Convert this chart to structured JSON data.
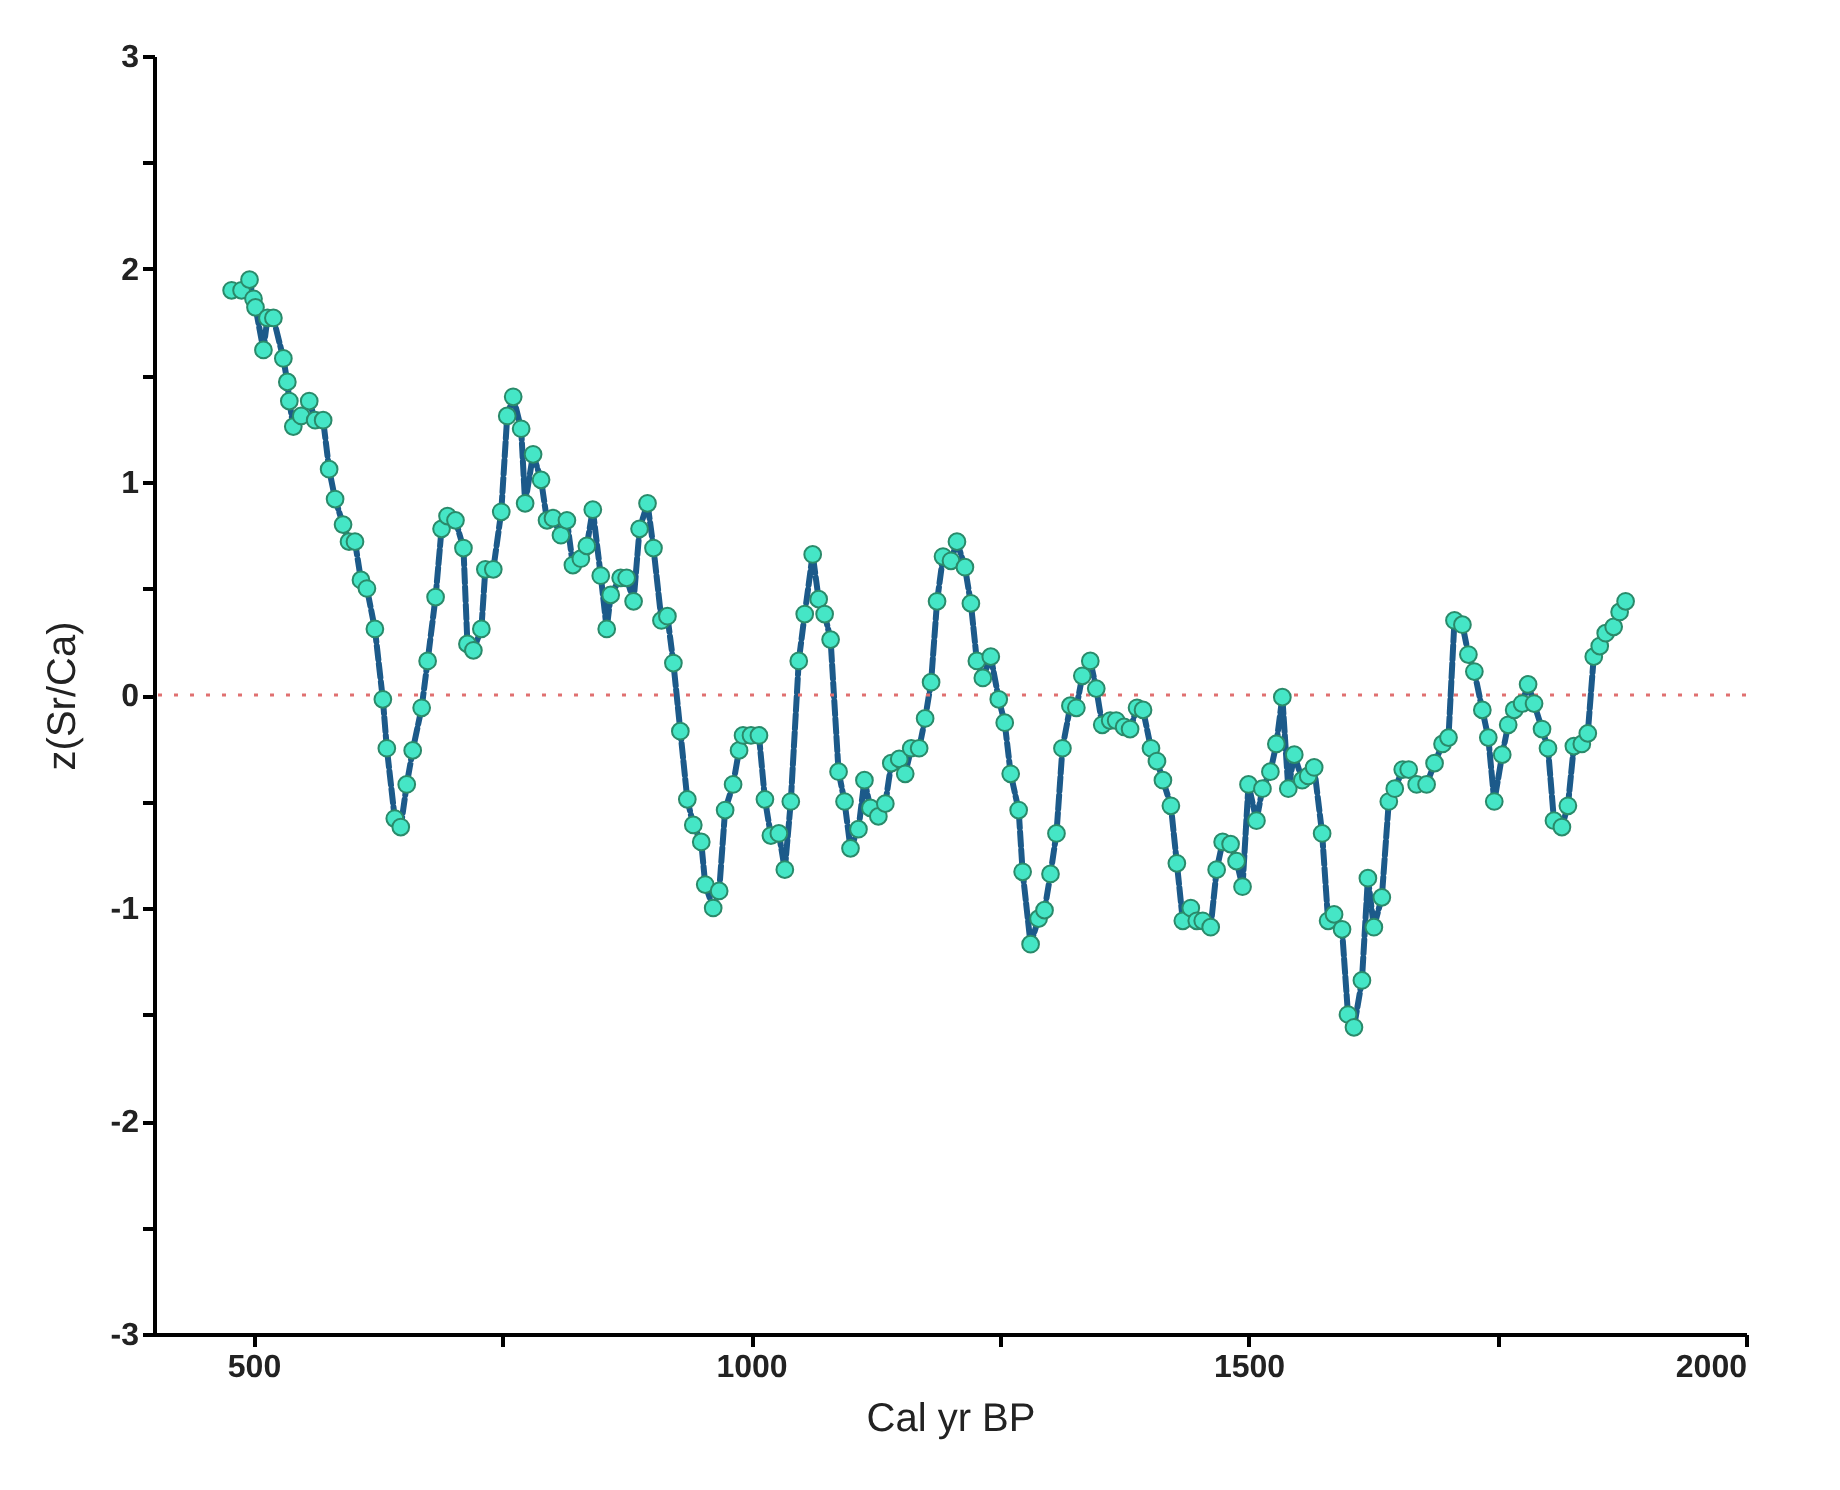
{
  "chart_data": {
    "type": "line",
    "xlabel": "Cal yr BP",
    "ylabel": "z(Sr/Ca)",
    "x": [
      478,
      488,
      496,
      500,
      502,
      510,
      514,
      520,
      530,
      534,
      536,
      540,
      548,
      556,
      562,
      570,
      576,
      582,
      590,
      596,
      602,
      608,
      614,
      622,
      630,
      634,
      642,
      648,
      654,
      660,
      669,
      675,
      683,
      689,
      695,
      703,
      711,
      715,
      721,
      729,
      733,
      741,
      749,
      755,
      761,
      769,
      773,
      781,
      789,
      795,
      801,
      809,
      815,
      821,
      829,
      835,
      841,
      849,
      855,
      859,
      869,
      875,
      882,
      888,
      896,
      902,
      910,
      916,
      922,
      929,
      936,
      942,
      950,
      954,
      962,
      968,
      974,
      982,
      988,
      992,
      1000,
      1008,
      1014,
      1020,
      1028,
      1034,
      1040,
      1048,
      1054,
      1062,
      1068,
      1074,
      1080,
      1088,
      1094,
      1100,
      1108,
      1114,
      1120,
      1128,
      1135,
      1141,
      1149,
      1155,
      1161,
      1169,
      1175,
      1181,
      1187,
      1193,
      1201,
      1207,
      1215,
      1221,
      1227,
      1233,
      1241,
      1249,
      1255,
      1261,
      1269,
      1273,
      1281,
      1289,
      1295,
      1301,
      1307,
      1313,
      1321,
      1327,
      1333,
      1341,
      1347,
      1353,
      1361,
      1367,
      1375,
      1381,
      1388,
      1394,
      1402,
      1408,
      1414,
      1422,
      1428,
      1434,
      1442,
      1448,
      1454,
      1462,
      1468,
      1474,
      1482,
      1488,
      1494,
      1500,
      1508,
      1514,
      1522,
      1528,
      1534,
      1540,
      1546,
      1554,
      1560,
      1566,
      1574,
      1580,
      1586,
      1594,
      1600,
      1606,
      1614,
      1620,
      1626,
      1634,
      1641,
      1647,
      1655,
      1661,
      1669,
      1679,
      1687,
      1695,
      1701,
      1707,
      1715,
      1721,
      1727,
      1735,
      1741,
      1747,
      1755,
      1761,
      1767,
      1775,
      1781,
      1787,
      1795,
      1801,
      1807,
      1815,
      1821,
      1827,
      1835,
      1841,
      1847,
      1853,
      1859,
      1867,
      1873,
      1879
    ],
    "series": [
      {
        "color": "#1c5a8a",
        "values": [
          1.9,
          1.9,
          1.95,
          1.86,
          1.82,
          1.62,
          1.77,
          1.77,
          1.58,
          1.47,
          1.38,
          1.26,
          1.31,
          1.38,
          1.29,
          1.29,
          1.06,
          0.92,
          0.8,
          0.72,
          0.72,
          0.54,
          0.5,
          0.31,
          -0.02,
          -0.25,
          -0.58,
          -0.62,
          -0.42,
          -0.26,
          -0.06,
          0.16,
          0.46,
          0.78,
          0.84,
          0.82,
          0.69,
          0.24,
          0.21,
          0.31,
          0.59,
          0.59,
          0.86,
          1.31,
          1.4,
          1.25,
          0.9,
          1.13,
          1.01,
          0.82,
          0.83,
          0.75,
          0.82,
          0.61,
          0.64,
          0.7,
          0.87,
          0.56,
          0.31,
          0.47,
          0.55,
          0.55,
          0.44,
          0.78,
          0.9,
          0.69,
          0.35,
          0.37,
          0.15,
          -0.17,
          -0.49,
          -0.61,
          -0.69,
          -0.89,
          -1.0,
          -0.92,
          -0.54,
          -0.42,
          -0.26,
          -0.19,
          -0.19,
          -0.19,
          -0.49,
          -0.66,
          -0.65,
          -0.82,
          -0.5,
          0.16,
          0.38,
          0.66,
          0.45,
          0.38,
          0.26,
          -0.36,
          -0.5,
          -0.72,
          -0.63,
          -0.4,
          -0.53,
          -0.57,
          -0.51,
          -0.32,
          -0.3,
          -0.37,
          -0.25,
          -0.25,
          -0.11,
          0.06,
          0.44,
          0.65,
          0.63,
          0.72,
          0.6,
          0.43,
          0.16,
          0.08,
          0.18,
          -0.02,
          -0.13,
          -0.37,
          -0.54,
          -0.83,
          -1.17,
          -1.05,
          -1.01,
          -0.84,
          -0.65,
          -0.25,
          -0.05,
          -0.06,
          0.09,
          0.16,
          0.03,
          -0.14,
          -0.12,
          -0.12,
          -0.15,
          -0.16,
          -0.06,
          -0.07,
          -0.25,
          -0.31,
          -0.4,
          -0.52,
          -0.79,
          -1.06,
          -1.0,
          -1.06,
          -1.06,
          -1.09,
          -0.82,
          -0.69,
          -0.7,
          -0.78,
          -0.9,
          -0.42,
          -0.59,
          -0.44,
          -0.36,
          -0.23,
          -0.01,
          -0.44,
          -0.28,
          -0.4,
          -0.38,
          -0.34,
          -0.65,
          -1.06,
          -1.03,
          -1.1,
          -1.5,
          -1.56,
          -1.34,
          -0.86,
          -1.09,
          -0.95,
          -0.5,
          -0.44,
          -0.35,
          -0.35,
          -0.42,
          -0.42,
          -0.32,
          -0.23,
          -0.2,
          0.35,
          0.33,
          0.19,
          0.11,
          -0.07,
          -0.2,
          -0.5,
          -0.28,
          -0.14,
          -0.07,
          -0.04,
          0.05,
          -0.04,
          -0.16,
          -0.25,
          -0.59,
          -0.62,
          -0.52,
          -0.24,
          -0.23,
          -0.18,
          0.18,
          0.23,
          0.29,
          0.32,
          0.39,
          0.44
        ]
      }
    ],
    "marker": "circle",
    "line_style": "dashed",
    "xlim": [
      400,
      2000
    ],
    "xticks": [
      500,
      {
        "value": 750,
        "label": null
      },
      1000,
      {
        "value": 1250,
        "label": null
      },
      1500,
      {
        "value": 1750,
        "label": null
      },
      2000
    ],
    "ylim": [
      -3,
      3
    ],
    "yticks": [
      -3,
      {
        "value": -2.5,
        "label": null
      },
      -2,
      {
        "value": -1.5,
        "label": null
      },
      -1,
      {
        "value": -0.5,
        "label": null
      },
      0,
      {
        "value": 0.5,
        "label": null
      },
      1,
      {
        "value": 1.5,
        "label": null
      },
      2,
      {
        "value": 2.5,
        "label": null
      },
      3
    ],
    "ref_lines": [
      {
        "axis": "y",
        "value": 0,
        "color": "#e07070",
        "line_style": "dotted"
      }
    ],
    "grid": false
  }
}
